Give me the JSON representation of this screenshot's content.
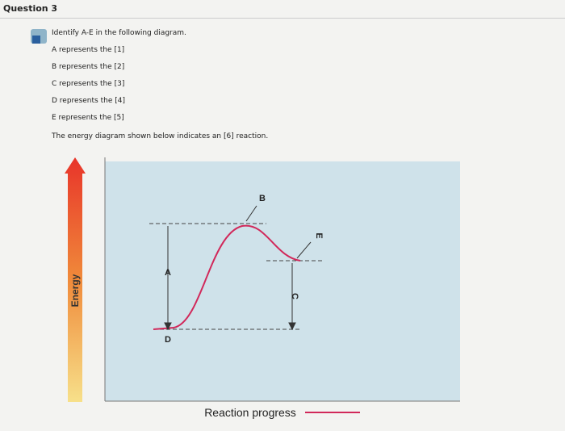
{
  "header": {
    "title": "Question 3"
  },
  "question": {
    "prompt": "Identify A-E in the following diagram.",
    "lines": [
      "A represents the [1]",
      "B represents the [2]",
      "C represents the [3]",
      "D represents the [4]",
      "E represents the [5]"
    ],
    "statement": "The energy diagram shown below indicates an [6] reaction."
  },
  "diagram": {
    "y_label": "Energy",
    "x_label": "Reaction progress",
    "labels": {
      "a": "A",
      "b": "B",
      "c": "C",
      "d": "D",
      "e": "E"
    }
  }
}
